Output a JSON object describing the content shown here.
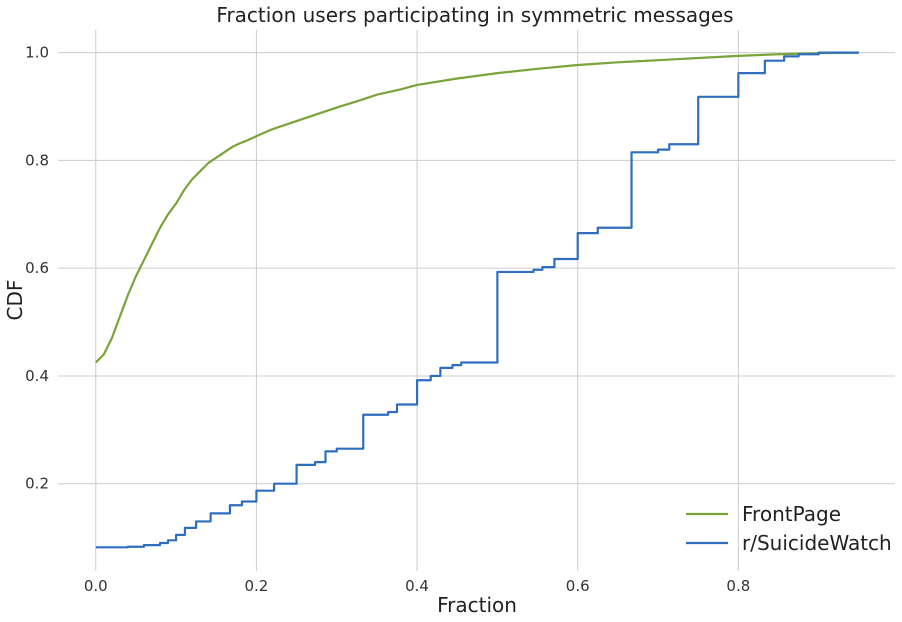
{
  "chart_data": {
    "type": "line",
    "title": "Fraction users participating in symmetric messages",
    "xlabel": "Fraction",
    "ylabel": "CDF",
    "xlim": [
      -0.047,
      0.995
    ],
    "ylim": [
      0.038,
      1.042
    ],
    "xticks": [
      0.0,
      0.2,
      0.4,
      0.6,
      0.8
    ],
    "xtick_labels": [
      "0.0",
      "0.2",
      "0.4",
      "0.6",
      "0.8"
    ],
    "yticks": [
      0.2,
      0.4,
      0.6,
      0.8,
      1.0
    ],
    "ytick_labels": [
      "0.2",
      "0.4",
      "0.6",
      "0.8",
      "1.0"
    ],
    "grid": true,
    "legend_position": "lower-right",
    "series": [
      {
        "name": "FrontPage",
        "color": "#7aa33a",
        "step": false,
        "x": [
          0.0,
          0.01,
          0.02,
          0.03,
          0.04,
          0.05,
          0.06,
          0.07,
          0.08,
          0.09,
          0.1,
          0.11,
          0.12,
          0.13,
          0.14,
          0.15,
          0.16,
          0.17,
          0.18,
          0.19,
          0.2,
          0.22,
          0.25,
          0.28,
          0.3,
          0.33,
          0.35,
          0.38,
          0.4,
          0.45,
          0.5,
          0.55,
          0.6,
          0.65,
          0.7,
          0.75,
          0.8,
          0.85,
          0.9,
          0.95
        ],
        "y": [
          0.425,
          0.44,
          0.47,
          0.51,
          0.55,
          0.585,
          0.615,
          0.645,
          0.675,
          0.7,
          0.72,
          0.745,
          0.765,
          0.78,
          0.795,
          0.805,
          0.815,
          0.825,
          0.832,
          0.838,
          0.845,
          0.858,
          0.873,
          0.888,
          0.898,
          0.912,
          0.922,
          0.932,
          0.94,
          0.952,
          0.962,
          0.97,
          0.977,
          0.982,
          0.986,
          0.99,
          0.994,
          0.997,
          0.999,
          1.0
        ]
      },
      {
        "name": "r/SuicideWatch",
        "color": "#2f6dbf",
        "step": true,
        "x": [
          0.0,
          0.04,
          0.06,
          0.08,
          0.09,
          0.1,
          0.111,
          0.125,
          0.143,
          0.167,
          0.182,
          0.2,
          0.222,
          0.25,
          0.273,
          0.286,
          0.3,
          0.333,
          0.364,
          0.375,
          0.4,
          0.417,
          0.429,
          0.444,
          0.455,
          0.5,
          0.545,
          0.556,
          0.571,
          0.6,
          0.625,
          0.667,
          0.7,
          0.714,
          0.75,
          0.8,
          0.833,
          0.857,
          0.875,
          0.9,
          0.95
        ],
        "y": [
          0.082,
          0.083,
          0.086,
          0.09,
          0.095,
          0.105,
          0.118,
          0.13,
          0.145,
          0.16,
          0.167,
          0.187,
          0.2,
          0.235,
          0.24,
          0.26,
          0.265,
          0.328,
          0.333,
          0.347,
          0.392,
          0.4,
          0.415,
          0.42,
          0.425,
          0.593,
          0.597,
          0.602,
          0.617,
          0.665,
          0.675,
          0.815,
          0.82,
          0.83,
          0.918,
          0.962,
          0.985,
          0.993,
          0.997,
          1.0,
          1.0
        ]
      }
    ]
  }
}
